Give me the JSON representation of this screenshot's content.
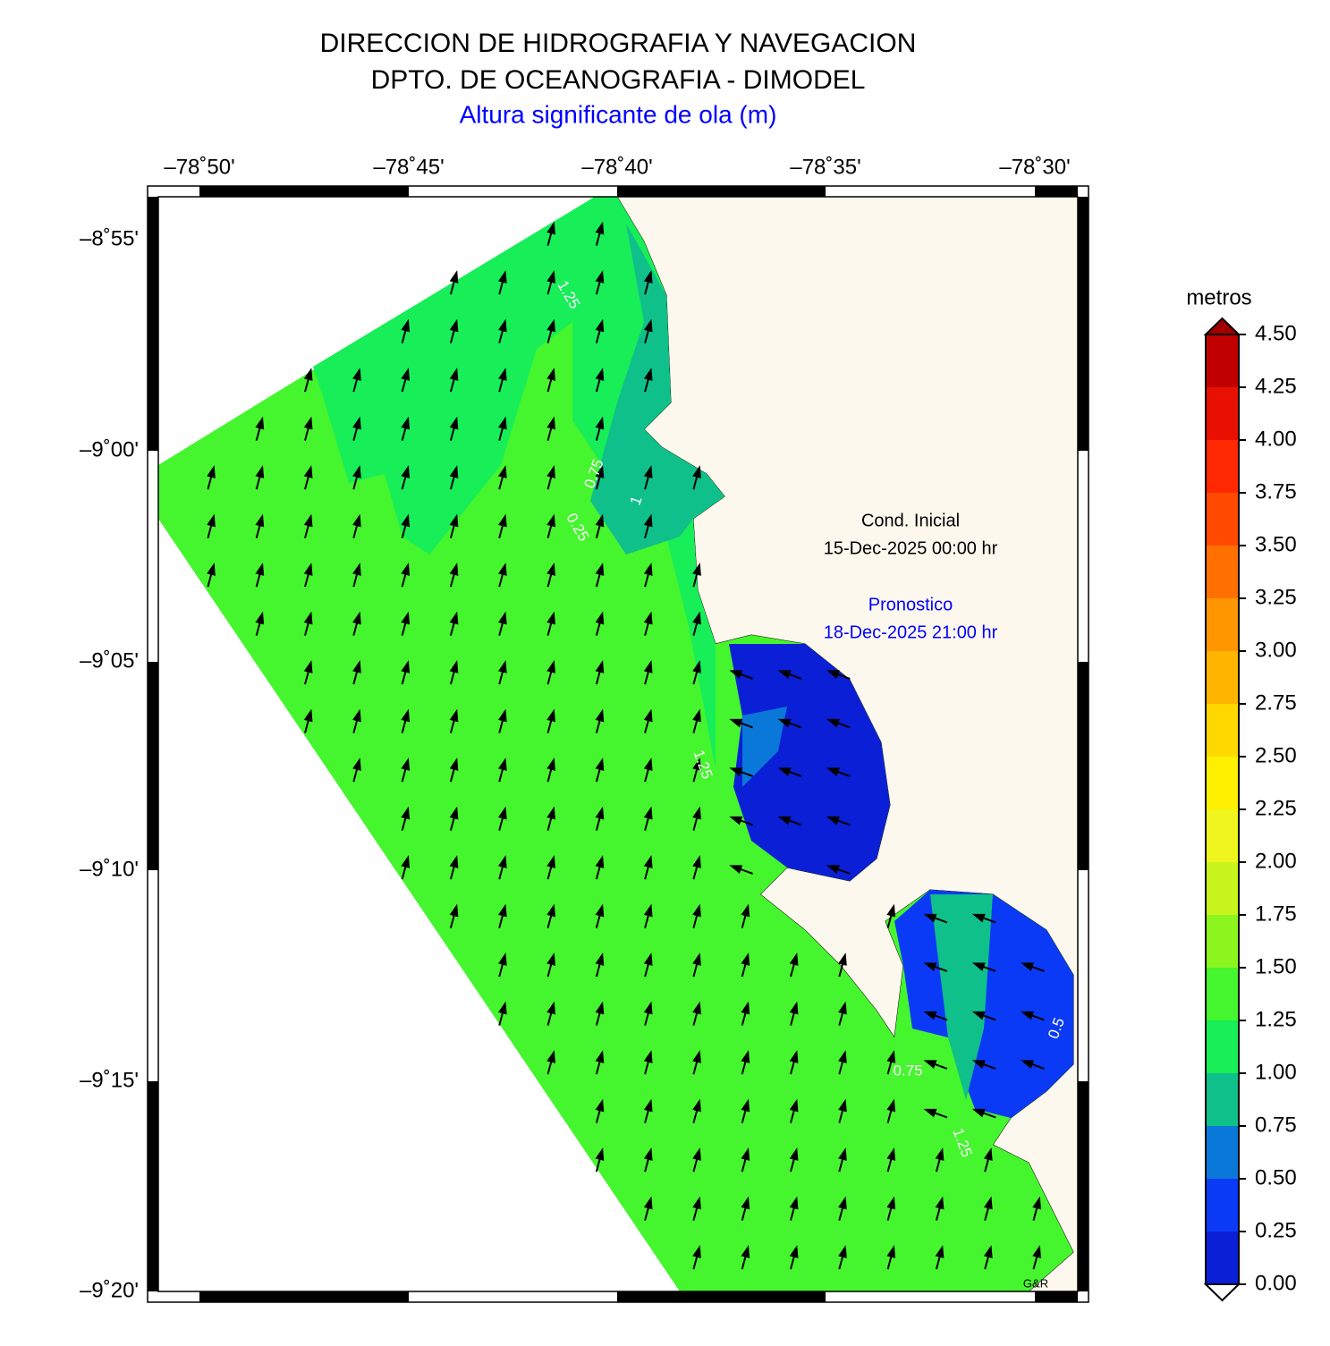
{
  "header": {
    "title": "DIRECCION DE HIDROGRAFIA Y NAVEGACION",
    "subtitle": "DPTO. DE OCEANOGRAFIA - DIMODEL",
    "variable": "Altura significante de ola (m)"
  },
  "map": {
    "lon_ticks": [
      "–78˚50'",
      "–78˚45'",
      "–78˚40'",
      "–78˚35'",
      "–78˚30'"
    ],
    "lat_ticks": [
      "–8˚55'",
      "–9˚00'",
      "–9˚05'",
      "–9˚10'",
      "–9˚15'",
      "–9˚20'"
    ],
    "initial_label": "Cond. Inicial",
    "initial_time": "15-Dec-2025 00:00 hr",
    "forecast_label": "Pronostico",
    "forecast_time": "18-Dec-2025 21:00 hr",
    "credit": "G&R",
    "contour_labels": [
      "1.25",
      "0.75",
      "1",
      "0.25",
      "1.25",
      "0.75",
      "1.25",
      "0.5"
    ]
  },
  "colorbar": {
    "title": "metros",
    "ticks": [
      "0.00",
      "0.25",
      "0.50",
      "0.75",
      "1.00",
      "1.25",
      "1.50",
      "1.75",
      "2.00",
      "2.25",
      "2.50",
      "2.75",
      "3.00",
      "3.25",
      "3.50",
      "3.75",
      "4.00",
      "4.25",
      "4.50"
    ],
    "colors": [
      "#0a1fd6",
      "#0a3af5",
      "#0a78d8",
      "#0fc08a",
      "#17ee58",
      "#45f52e",
      "#8cf51e",
      "#c8f51e",
      "#f0f51e",
      "#fff000",
      "#ffd800",
      "#ffb400",
      "#ff9600",
      "#ff7000",
      "#ff4a00",
      "#ff2800",
      "#e81000",
      "#c00000"
    ]
  }
}
